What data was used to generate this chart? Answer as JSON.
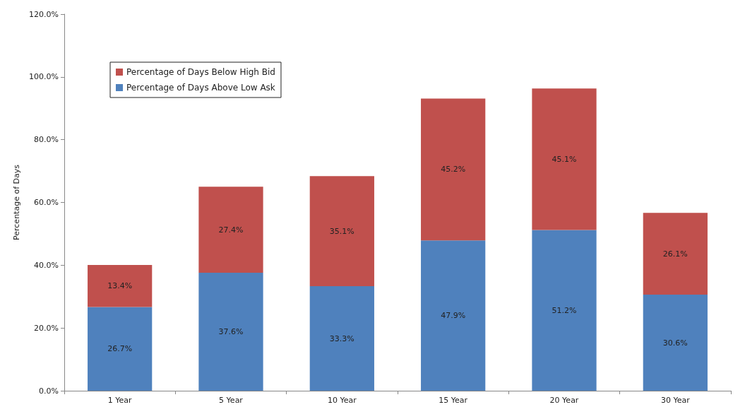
{
  "chart_data": {
    "type": "bar",
    "stacked": true,
    "ylabel": "Percentage of Days",
    "categories": [
      "1 Year",
      "5 Year",
      "10 Year",
      "15 Year",
      "20 Year",
      "30 Year"
    ],
    "series": [
      {
        "name": "Percentage of Days Above Low Ask",
        "color": "#4f81bd",
        "values": [
          26.7,
          37.6,
          33.3,
          47.9,
          51.2,
          30.6
        ],
        "value_labels": [
          "26.7%",
          "37.6%",
          "33.3%",
          "47.9%",
          "51.2%",
          "30.6%"
        ]
      },
      {
        "name": "Percentage of Days Below High Bid",
        "color": "#c0504d",
        "values": [
          13.4,
          27.4,
          35.1,
          45.2,
          45.1,
          26.1
        ],
        "value_labels": [
          "13.4%",
          "27.4%",
          "35.1%",
          "45.2%",
          "45.1%",
          "26.1%"
        ]
      }
    ],
    "ylim": [
      0,
      120
    ],
    "yticks": [
      {
        "value": 0,
        "label": "0.0%"
      },
      {
        "value": 20,
        "label": "20.0%"
      },
      {
        "value": 40,
        "label": "40.0%"
      },
      {
        "value": 60,
        "label": "60.0%"
      },
      {
        "value": 80,
        "label": "80.0%"
      },
      {
        "value": 100,
        "label": "100.0%"
      },
      {
        "value": 120,
        "label": "120.0%"
      }
    ],
    "grid": false,
    "legend": "top left"
  }
}
